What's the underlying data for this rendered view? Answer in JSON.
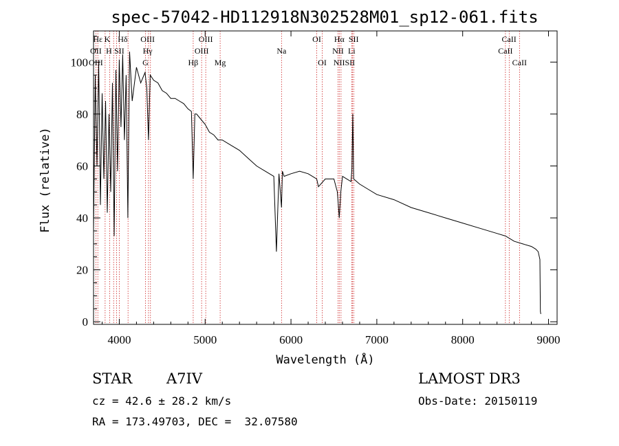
{
  "chart_data": {
    "type": "line",
    "title": "spec-57042-HD112918N302528M01_sp12-061.fits",
    "xlabel": "Wavelength (Å)",
    "ylabel": "Flux (relative)",
    "xlim": [
      3700,
      9100
    ],
    "ylim": [
      -1,
      112
    ],
    "x_ticks": [
      4000,
      5000,
      6000,
      7000,
      8000,
      9000
    ],
    "y_ticks": [
      0,
      20,
      40,
      60,
      80,
      100
    ],
    "series": [
      {
        "name": "spectrum",
        "x": [
          3700,
          3720,
          3740,
          3760,
          3780,
          3800,
          3820,
          3840,
          3860,
          3880,
          3900,
          3920,
          3940,
          3960,
          3980,
          4000,
          4020,
          4040,
          4060,
          4080,
          4100,
          4120,
          4150,
          4200,
          4250,
          4300,
          4320,
          4340,
          4360,
          4400,
          4450,
          4500,
          4550,
          4600,
          4650,
          4700,
          4750,
          4800,
          4840,
          4861,
          4880,
          4900,
          4950,
          5000,
          5050,
          5100,
          5150,
          5200,
          5300,
          5400,
          5500,
          5600,
          5700,
          5800,
          5830,
          5860,
          5890,
          5900,
          5920,
          6000,
          6100,
          6200,
          6300,
          6320,
          6400,
          6500,
          6540,
          6563,
          6580,
          6600,
          6650,
          6700,
          6710,
          6720,
          6730,
          6800,
          6900,
          7000,
          7200,
          7400,
          7600,
          7800,
          8000,
          8200,
          8400,
          8500,
          8600,
          8700,
          8800,
          8850,
          8880,
          8900,
          8905,
          8910
        ],
        "y": [
          35,
          95,
          60,
          100,
          45,
          88,
          55,
          85,
          42,
          80,
          50,
          92,
          33,
          97,
          58,
          101,
          75,
          103,
          70,
          95,
          40,
          104,
          85,
          98,
          92,
          96,
          90,
          70,
          95,
          93,
          92,
          89,
          88,
          86,
          86,
          85,
          84,
          82,
          81,
          55,
          80,
          80,
          78,
          76,
          73,
          72,
          70,
          70,
          68,
          66,
          63,
          60,
          58,
          56,
          27,
          57,
          44,
          58,
          56,
          57,
          58,
          57,
          55,
          52,
          55,
          55,
          50,
          40,
          50,
          56,
          55,
          54,
          59,
          80,
          55,
          53,
          51,
          49,
          47,
          44,
          42,
          40,
          38,
          36,
          34,
          33,
          31,
          30,
          29,
          28,
          27,
          24,
          4,
          3
        ]
      }
    ],
    "line_labels": [
      {
        "text": "Hε",
        "row": 0,
        "wl": 3750
      },
      {
        "text": "K",
        "row": 0,
        "wl": 3860
      },
      {
        "text": "Hδ",
        "row": 0,
        "wl": 4040
      },
      {
        "text": "OIII",
        "row": 0,
        "wl": 4330
      },
      {
        "text": "OIII",
        "row": 0,
        "wl": 5007
      },
      {
        "text": "OI",
        "row": 0,
        "wl": 6300
      },
      {
        "text": "Hα",
        "row": 0,
        "wl": 6563
      },
      {
        "text": "SII",
        "row": 0,
        "wl": 6730
      },
      {
        "text": "CaII",
        "row": 0,
        "wl": 8540
      },
      {
        "text": "OII",
        "row": 1,
        "wl": 3727
      },
      {
        "text": "H",
        "row": 1,
        "wl": 3880
      },
      {
        "text": "SII",
        "row": 1,
        "wl": 4000
      },
      {
        "text": "Hγ",
        "row": 1,
        "wl": 4330
      },
      {
        "text": "OIII",
        "row": 1,
        "wl": 4959
      },
      {
        "text": "Na",
        "row": 1,
        "wl": 5890
      },
      {
        "text": "NII",
        "row": 1,
        "wl": 6548
      },
      {
        "text": "Li",
        "row": 1,
        "wl": 6707
      },
      {
        "text": "CaII",
        "row": 1,
        "wl": 8498
      },
      {
        "text": "OIII",
        "row": 2,
        "wl": 3727
      },
      {
        "text": "G",
        "row": 2,
        "wl": 4305
      },
      {
        "text": "Hβ",
        "row": 2,
        "wl": 4861
      },
      {
        "text": "Mg",
        "row": 2,
        "wl": 5175
      },
      {
        "text": "OI",
        "row": 2,
        "wl": 6364
      },
      {
        "text": "NIISII",
        "row": 2,
        "wl": 6620
      },
      {
        "text": "CaII",
        "row": 2,
        "wl": 8662
      }
    ],
    "reference_lines": [
      3727,
      3750,
      3835,
      3889,
      3934,
      3969,
      4000,
      4102,
      4305,
      4340,
      4363,
      4861,
      4959,
      5007,
      5175,
      5890,
      6300,
      6364,
      6548,
      6563,
      6583,
      6707,
      6716,
      6731,
      8498,
      8542,
      8662
    ]
  },
  "footer": {
    "object_class": "STAR",
    "subclass": "A7IV",
    "cz": "cz = 42.6 ± 28.2 km/s",
    "coords": "RA = 173.49703, DEC =  32.07580",
    "survey": "LAMOST DR3",
    "obs_date": "Obs-Date: 20150119"
  }
}
